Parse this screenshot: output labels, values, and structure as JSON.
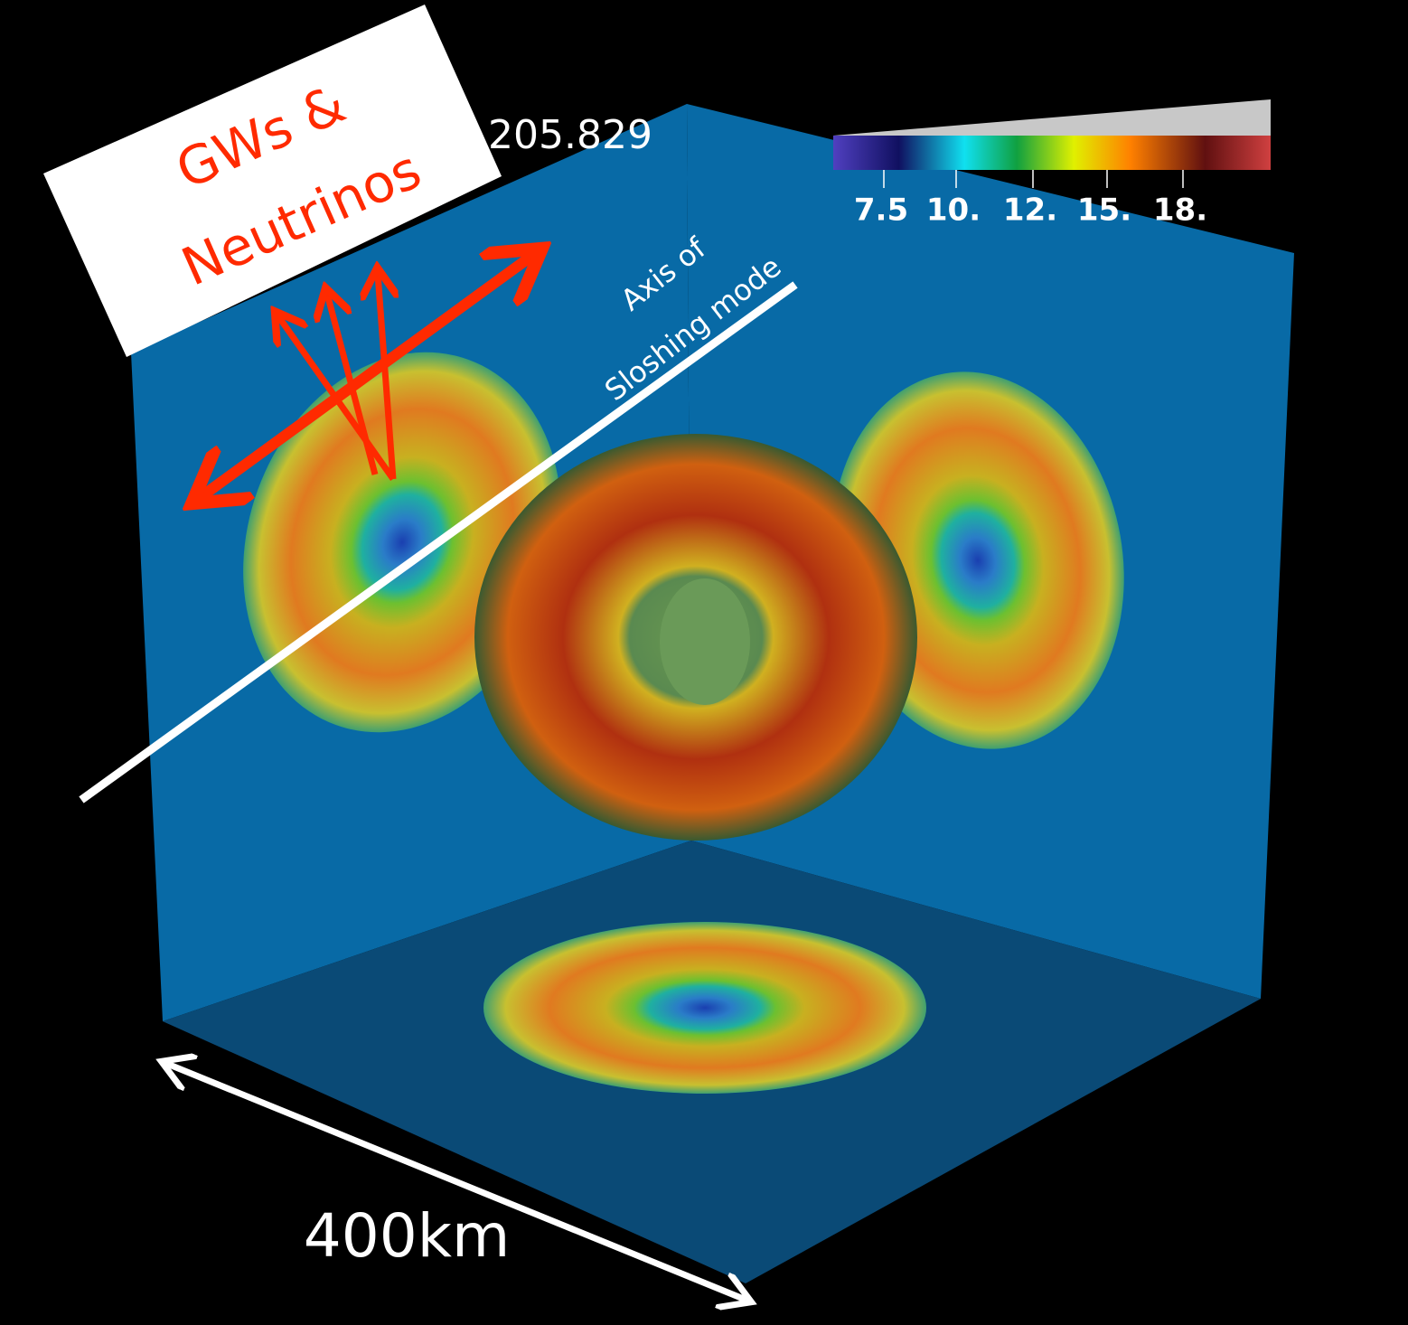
{
  "time_label": "205.829",
  "colorbar": {
    "ticks": [
      "7.5",
      "10.",
      "12.",
      "15.",
      "18."
    ]
  },
  "annotations": {
    "emission": [
      "GWs &",
      "Neutrinos"
    ],
    "axis": [
      "Axis of",
      "Sloshing mode"
    ],
    "scale": "400km"
  }
}
